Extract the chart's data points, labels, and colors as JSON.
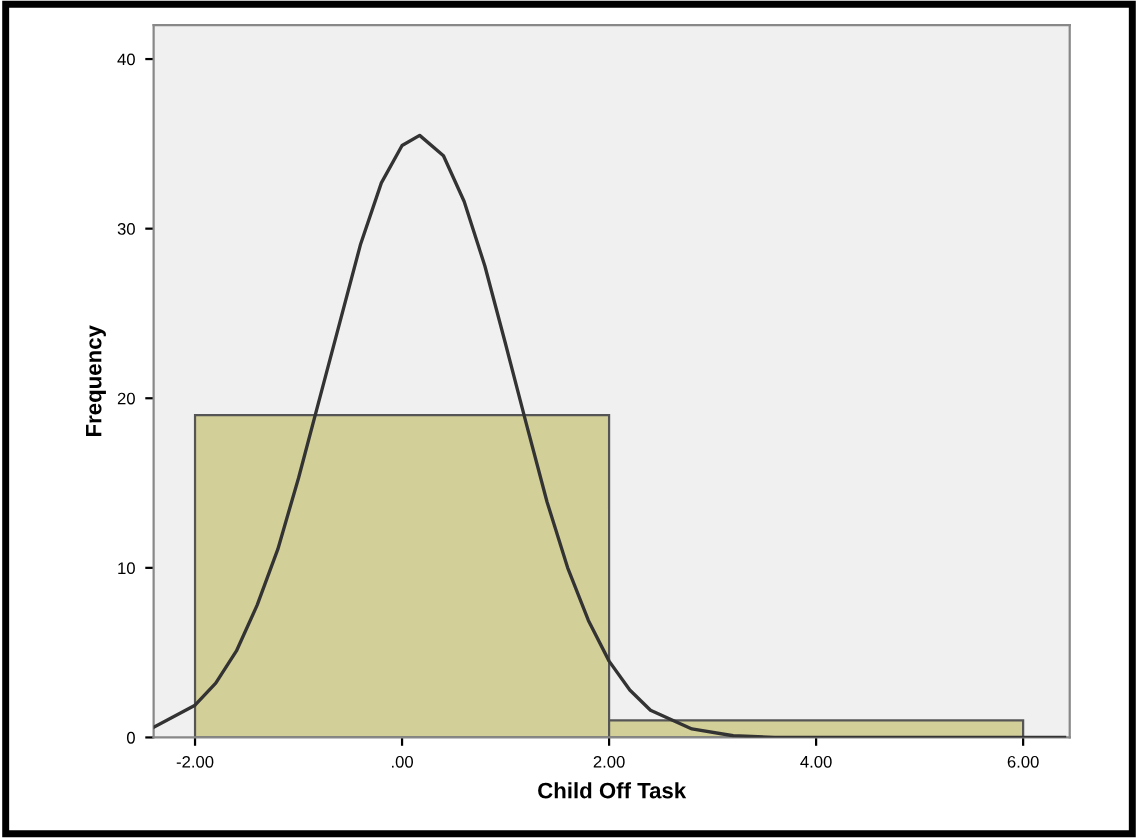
{
  "chart_data": {
    "type": "histogram",
    "xlabel": "Child Off Task",
    "ylabel": "Frequency",
    "bins": [
      -2,
      2,
      6
    ],
    "xlim": [
      -2.4,
      6.45
    ],
    "ylim": [
      0,
      42
    ],
    "xticks": [
      {
        "value": -2,
        "label": "-2.00"
      },
      {
        "value": 0,
        "label": ".00"
      },
      {
        "value": 2,
        "label": "2.00"
      },
      {
        "value": 4,
        "label": "4.00"
      },
      {
        "value": 6,
        "label": "6.00"
      }
    ],
    "yticks": [
      0,
      10,
      20,
      30,
      40
    ],
    "grid": false,
    "legend": false,
    "series": [
      {
        "color": "#d3cf98",
        "values": [
          19,
          1
        ]
      },
      {
        "type": "line",
        "color": "#333333",
        "x": [
          -2.4,
          -2.0,
          -1.8,
          -1.6,
          -1.4,
          -1.2,
          -1.0,
          -0.8,
          -0.6,
          -0.4,
          -0.2,
          0.0,
          0.17,
          0.4,
          0.6,
          0.8,
          1.0,
          1.2,
          1.4,
          1.6,
          1.8,
          2.0,
          2.2,
          2.4,
          2.8,
          3.2,
          3.6,
          4.0,
          5.0,
          6.0,
          6.4
        ],
        "values": [
          0.6,
          1.9,
          3.2,
          5.1,
          7.8,
          11.1,
          15.3,
          19.9,
          24.5,
          29.1,
          32.7,
          34.9,
          35.5,
          34.3,
          31.6,
          27.8,
          23.2,
          18.5,
          13.9,
          10.0,
          6.9,
          4.5,
          2.8,
          1.6,
          0.5,
          0.1,
          0,
          0,
          0,
          0,
          0
        ]
      }
    ]
  }
}
